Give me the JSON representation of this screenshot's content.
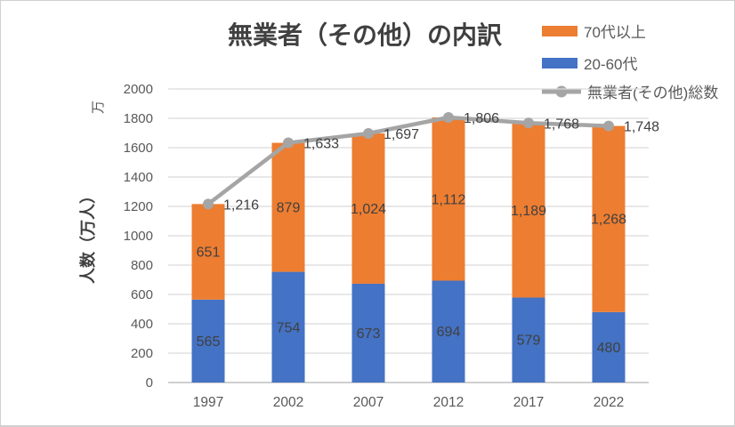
{
  "chart_data": {
    "type": "bar",
    "subtype": "stacked-bar-with-line-overlay",
    "title": "無業者（その他）の内訳",
    "categories": [
      "1997",
      "2002",
      "2007",
      "2012",
      "2017",
      "2022"
    ],
    "series": [
      {
        "name": "20-60代",
        "type": "bar",
        "stack_order": 0,
        "color": "#4472C4",
        "values": [
          565,
          754,
          673,
          694,
          579,
          480
        ]
      },
      {
        "name": "70代以上",
        "type": "bar",
        "stack_order": 1,
        "color": "#ED7D31",
        "values": [
          651,
          879,
          1024,
          1112,
          1189,
          1268
        ]
      },
      {
        "name": "無業者(その他)総数",
        "type": "line",
        "color": "#A5A5A5",
        "values": [
          1216,
          1633,
          1697,
          1806,
          1768,
          1748
        ]
      }
    ],
    "data_labels": {
      "bar_20_60": [
        "565",
        "754",
        "673",
        "694",
        "579",
        "480"
      ],
      "bar_70plus": [
        "651",
        "879",
        "1,024",
        "1,112",
        "1,189",
        "1,268"
      ],
      "line_totals": [
        "1,216",
        "1,633",
        "1,697",
        "1,806",
        "1,768",
        "1,748"
      ]
    },
    "xlabel": "",
    "ylabel": "人数（万人）",
    "y_display_unit": "万",
    "ylim": [
      0,
      2000
    ],
    "ytick_step": 200,
    "grid": true,
    "legend_position": "top-right",
    "colors": {
      "gridline": "#D9D9D9",
      "axis_line": "#BFBFBF",
      "tick_text": "#595959",
      "data_label_text": "#404040",
      "title_text": "#404040"
    }
  },
  "legend": {
    "items": [
      {
        "label": "70代以上",
        "swatch": "bar",
        "color": "#ED7D31"
      },
      {
        "label": "20-60代",
        "swatch": "bar",
        "color": "#4472C4"
      },
      {
        "label": "無業者(その他)総数",
        "swatch": "line-marker",
        "color": "#A5A5A5"
      }
    ]
  }
}
